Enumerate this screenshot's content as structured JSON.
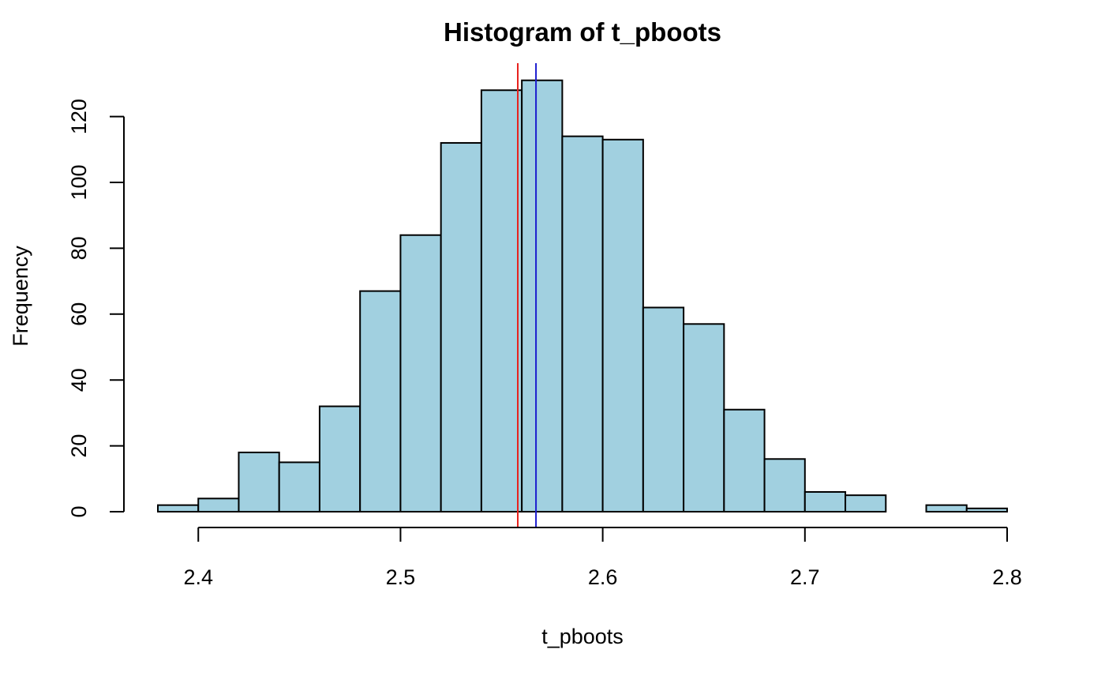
{
  "chart_data": {
    "type": "bar",
    "title": "Histogram of t_pboots",
    "xlabel": "t_pboots",
    "ylabel": "Frequency",
    "xlim": [
      2.38,
      2.8
    ],
    "ylim": [
      0,
      132
    ],
    "x_ticks": [
      2.4,
      2.5,
      2.6,
      2.7,
      2.8
    ],
    "x_tick_labels": [
      "2.4",
      "2.5",
      "2.6",
      "2.7",
      "2.8"
    ],
    "y_ticks": [
      0,
      20,
      40,
      60,
      80,
      100,
      120
    ],
    "y_tick_labels": [
      "0",
      "20",
      "40",
      "60",
      "80",
      "100",
      "120"
    ],
    "bins": [
      {
        "start": 2.38,
        "end": 2.4,
        "count": 2
      },
      {
        "start": 2.4,
        "end": 2.42,
        "count": 4
      },
      {
        "start": 2.42,
        "end": 2.44,
        "count": 18
      },
      {
        "start": 2.44,
        "end": 2.46,
        "count": 15
      },
      {
        "start": 2.46,
        "end": 2.48,
        "count": 32
      },
      {
        "start": 2.48,
        "end": 2.5,
        "count": 67
      },
      {
        "start": 2.5,
        "end": 2.52,
        "count": 84
      },
      {
        "start": 2.52,
        "end": 2.54,
        "count": 112
      },
      {
        "start": 2.54,
        "end": 2.56,
        "count": 128
      },
      {
        "start": 2.56,
        "end": 2.58,
        "count": 131
      },
      {
        "start": 2.58,
        "end": 2.6,
        "count": 114
      },
      {
        "start": 2.6,
        "end": 2.62,
        "count": 113
      },
      {
        "start": 2.62,
        "end": 2.64,
        "count": 62
      },
      {
        "start": 2.64,
        "end": 2.66,
        "count": 57
      },
      {
        "start": 2.66,
        "end": 2.68,
        "count": 31
      },
      {
        "start": 2.68,
        "end": 2.7,
        "count": 16
      },
      {
        "start": 2.7,
        "end": 2.72,
        "count": 6
      },
      {
        "start": 2.72,
        "end": 2.74,
        "count": 5
      },
      {
        "start": 2.74,
        "end": 2.76,
        "count": 0
      },
      {
        "start": 2.76,
        "end": 2.78,
        "count": 2
      },
      {
        "start": 2.78,
        "end": 2.8,
        "count": 1
      }
    ],
    "bar_color": "#A1D0E0",
    "vertical_lines": [
      {
        "x": 2.558,
        "color": "#E8211C"
      },
      {
        "x": 2.567,
        "color": "#1C1CCF"
      }
    ],
    "grid": false,
    "legend": "none"
  }
}
